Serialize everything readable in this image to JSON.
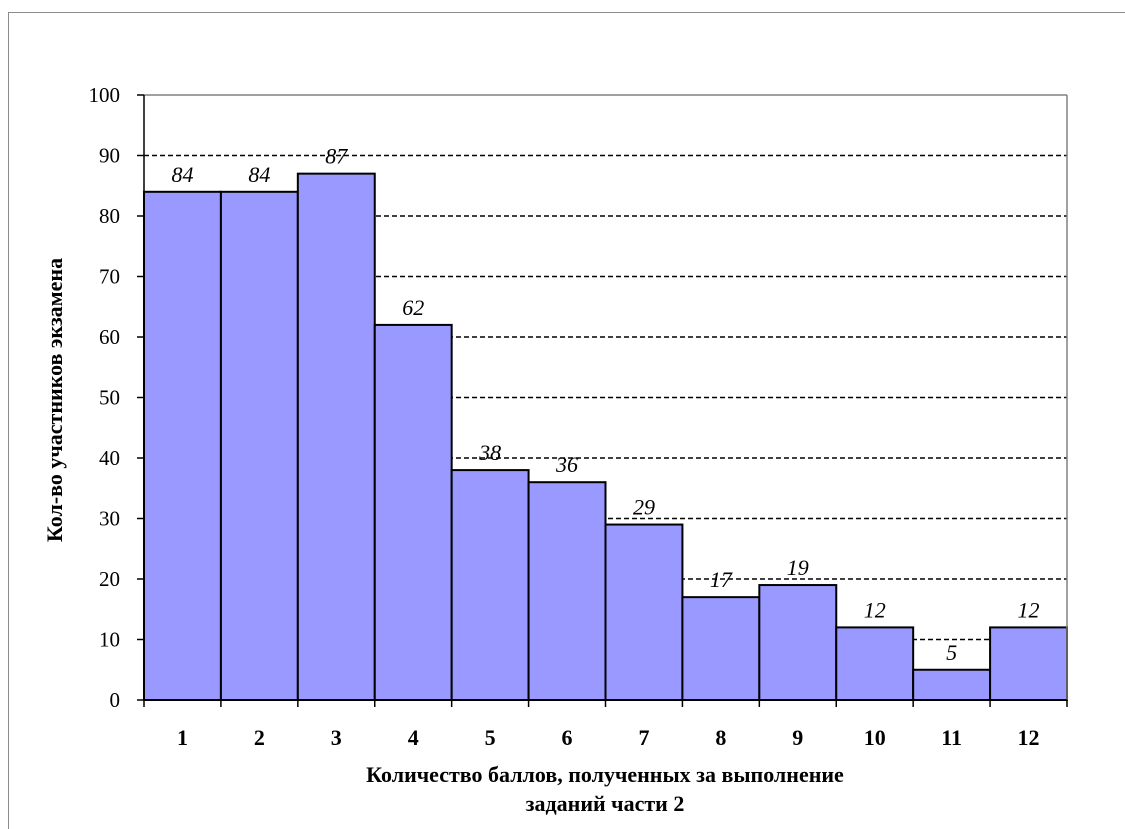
{
  "chart_data": {
    "type": "bar",
    "title": "",
    "xlabel_lines": [
      "Количество баллов, полученных за выполнение",
      "заданий части 2"
    ],
    "ylabel": "Кол-во участников экзамена",
    "categories": [
      "1",
      "2",
      "3",
      "4",
      "5",
      "6",
      "7",
      "8",
      "9",
      "10",
      "11",
      "12"
    ],
    "values": [
      84,
      84,
      87,
      62,
      38,
      36,
      29,
      17,
      19,
      12,
      5,
      12
    ],
    "data_labels": [
      "84",
      "84",
      "87",
      "62",
      "38",
      "36",
      "29",
      "17",
      "19",
      "12",
      "5",
      "12"
    ],
    "ylim": [
      0,
      100
    ],
    "yticks": [
      "0",
      "10",
      "20",
      "30",
      "40",
      "50",
      "60",
      "70",
      "80",
      "90",
      "100"
    ],
    "grid": "dashed horizontal",
    "legend": "none",
    "colors": {
      "bar_fill": "#9999ff",
      "bar_stroke": "#000000",
      "grid": "#000000"
    }
  }
}
